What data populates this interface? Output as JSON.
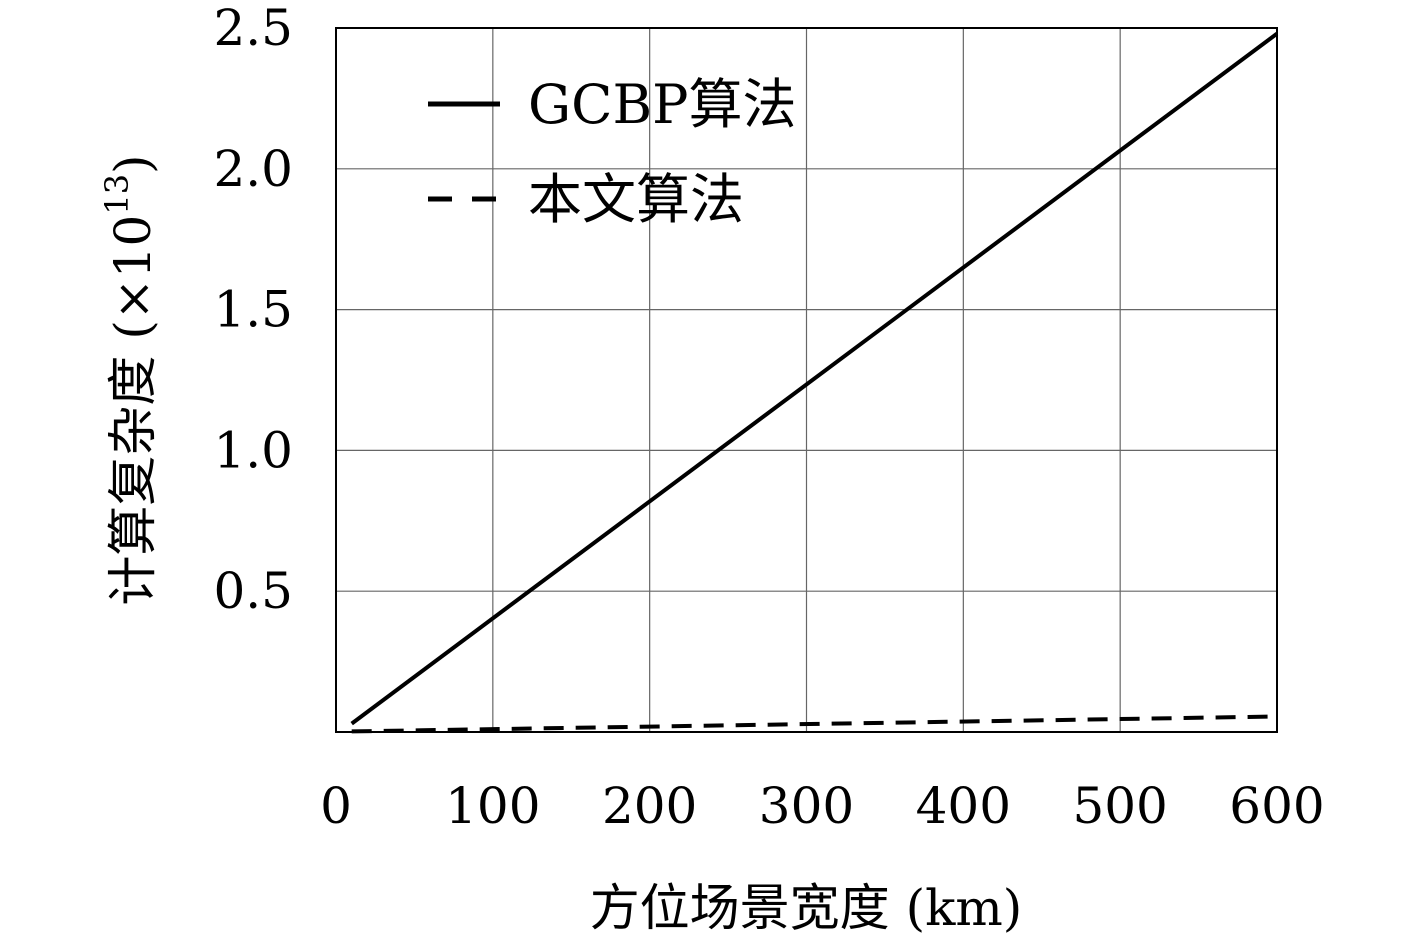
{
  "chart_data": {
    "type": "line",
    "xlabel": "方位场景宽度 (km)",
    "ylabel": "计算复杂度 (×10",
    "ylabel_exponent": "13",
    "ylabel_close": ")",
    "xlim": [
      0,
      600
    ],
    "ylim": [
      0,
      2.5
    ],
    "xticks": [
      {
        "value": 0,
        "label": "0"
      },
      {
        "value": 100,
        "label": "100"
      },
      {
        "value": 200,
        "label": "200"
      },
      {
        "value": 300,
        "label": "300"
      },
      {
        "value": 400,
        "label": "400"
      },
      {
        "value": 500,
        "label": "500"
      },
      {
        "value": 600,
        "label": "600"
      }
    ],
    "yticks": [
      {
        "value": 0.5,
        "label": "0.5"
      },
      {
        "value": 1.0,
        "label": "1.0"
      },
      {
        "value": 1.5,
        "label": "1.5"
      },
      {
        "value": 2.0,
        "label": "2.0"
      },
      {
        "value": 2.5,
        "label": "2.5"
      }
    ],
    "grid": true,
    "legend": "top-left",
    "series": [
      {
        "name": "GCBP算法",
        "style": "solid",
        "color": "#000000",
        "x": [
          10,
          600
        ],
        "y": [
          0.03,
          2.48
        ]
      },
      {
        "name": "本文算法",
        "style": "dashed",
        "color": "#000000",
        "x": [
          10,
          600
        ],
        "y": [
          0.002,
          0.055
        ]
      }
    ]
  }
}
